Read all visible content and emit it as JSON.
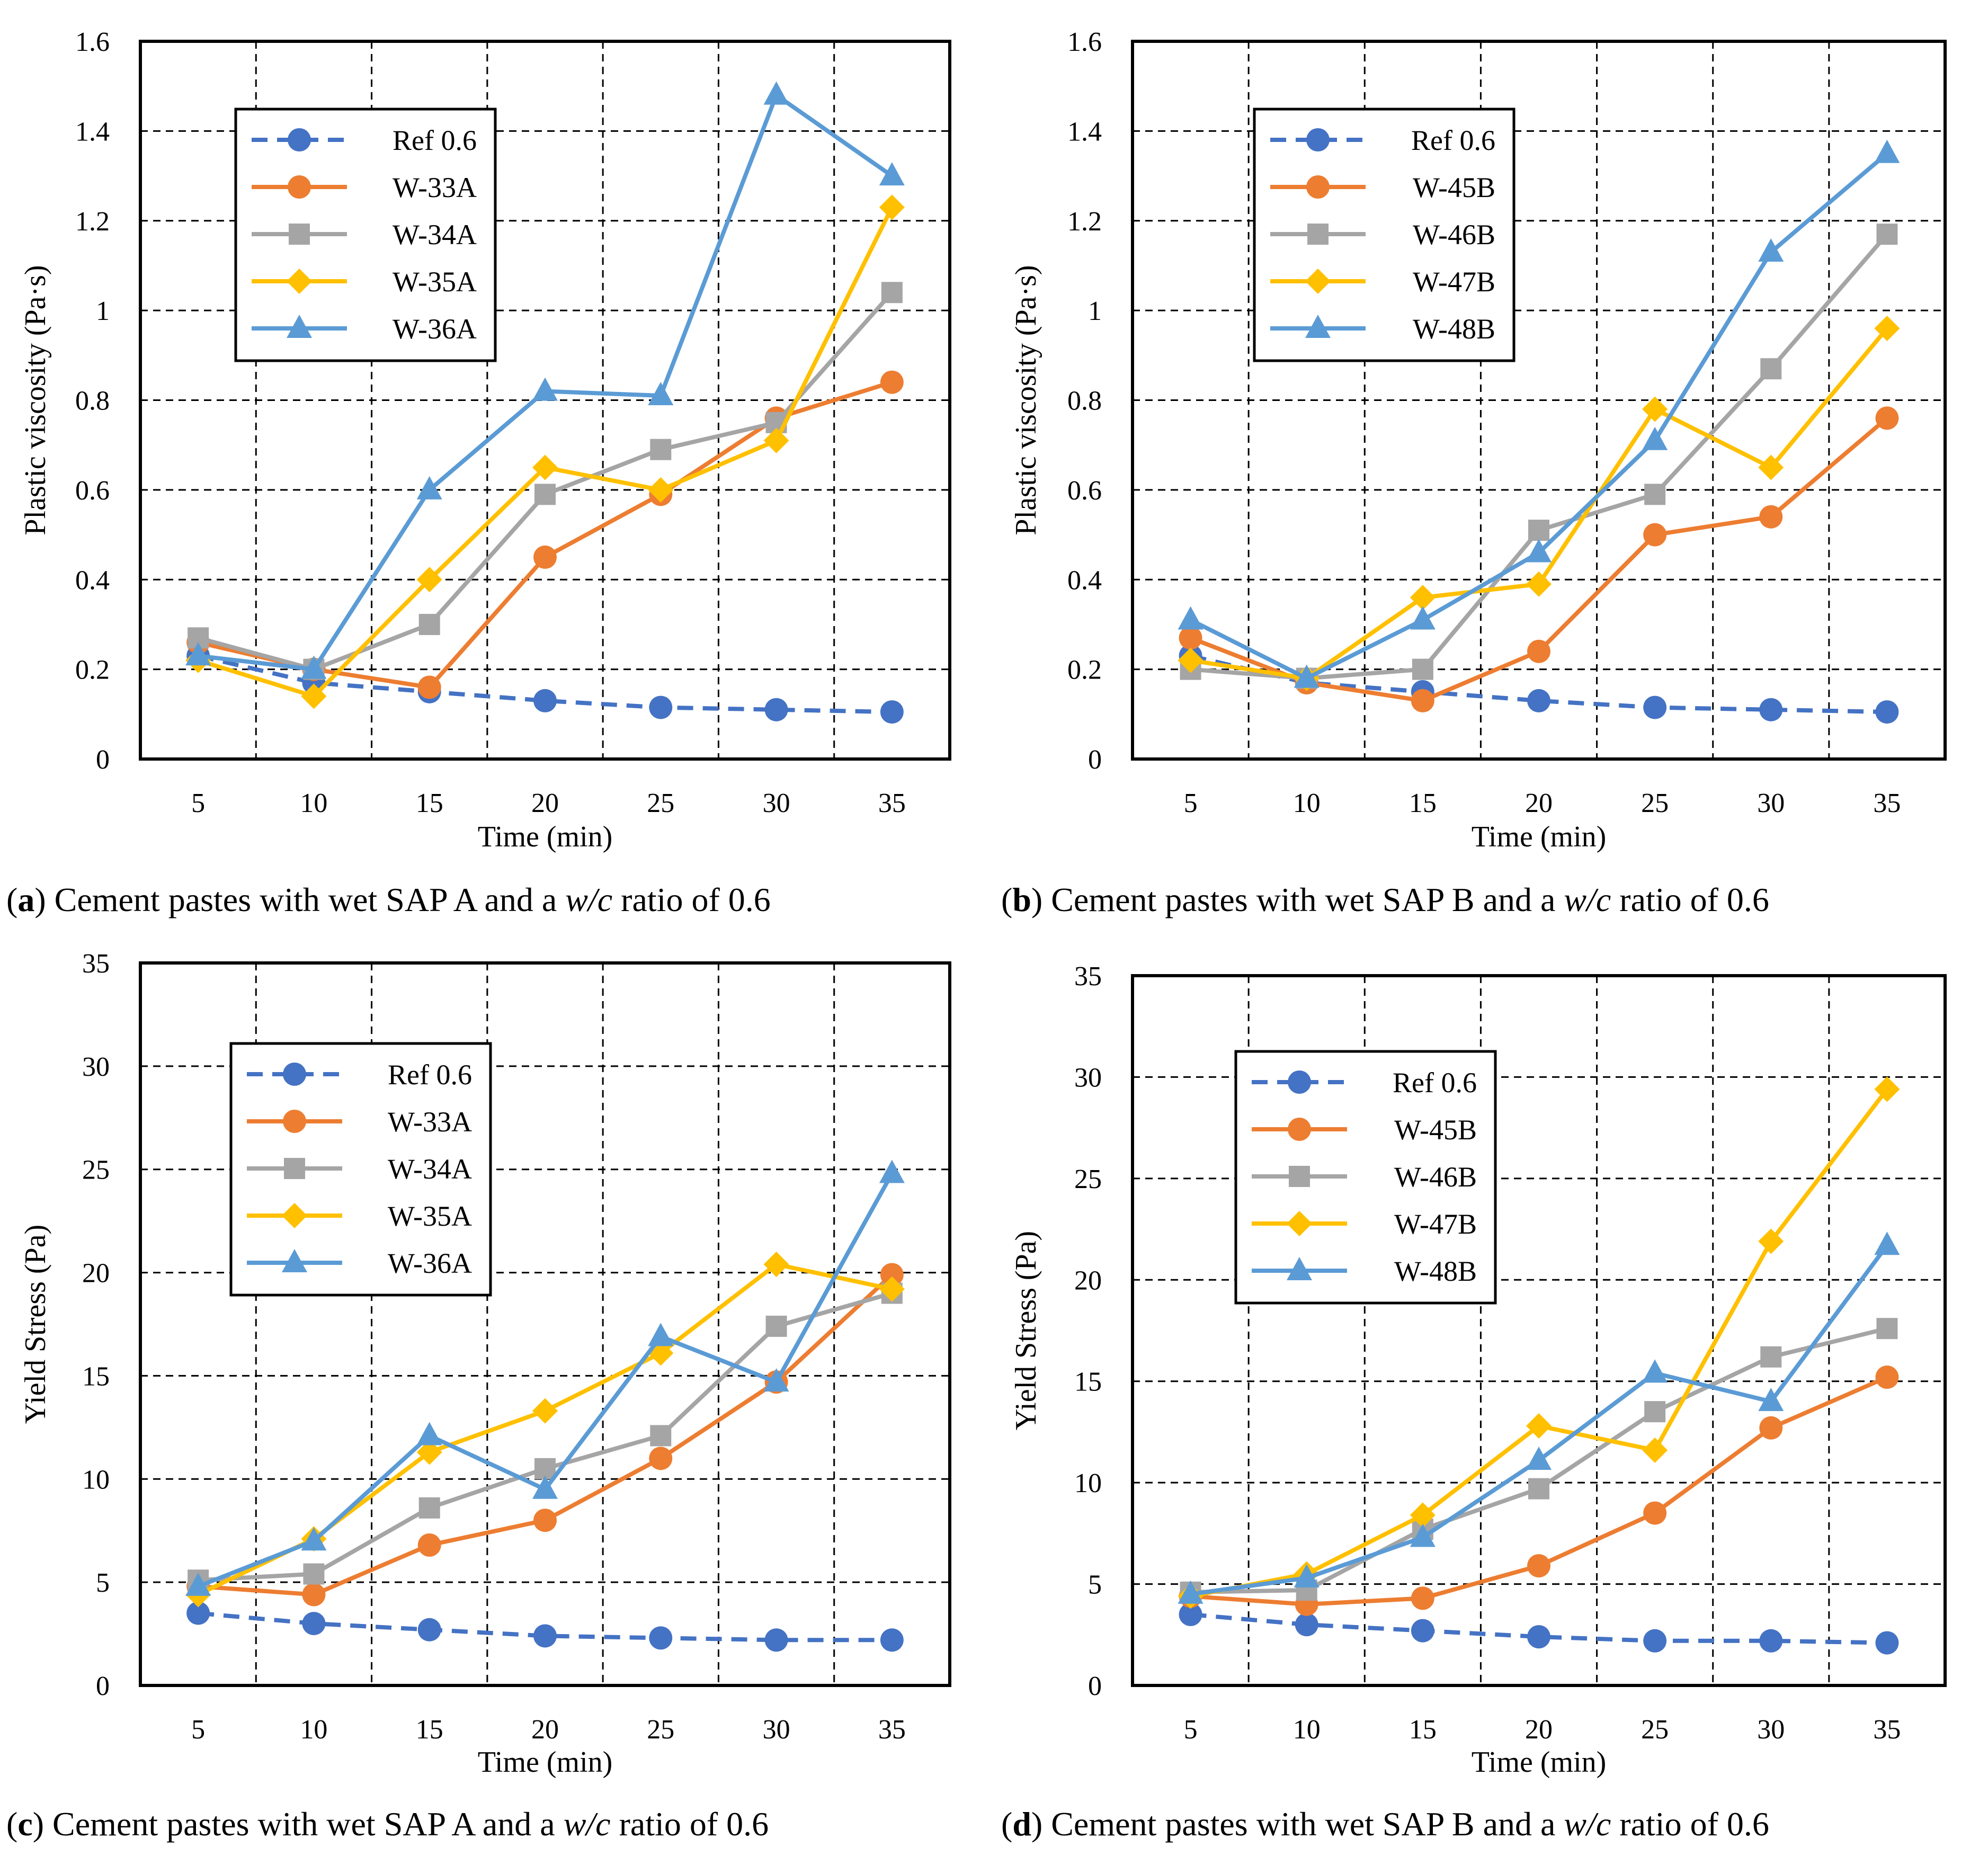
{
  "chart_data": [
    {
      "type": "line",
      "panel": "a",
      "caption_letter": "a",
      "caption_text": "Cement pastes with wet SAP A and a ",
      "caption_italic": "w/c",
      "caption_end": " ratio of 0.6",
      "xlabel": "Time (min)",
      "ylabel": "Plastic viscosity (Pa·s)",
      "categories": [
        "5",
        "10",
        "15",
        "20",
        "25",
        "30",
        "35"
      ],
      "ylim": [
        0,
        1.6
      ],
      "yticks": [
        "0",
        "0.2",
        "0.4",
        "0.6",
        "0.8",
        "1",
        "1.2",
        "1.4",
        "1.6"
      ],
      "grid": true,
      "legend": "upper-left",
      "series": [
        {
          "name": "Ref 0.6",
          "color": "#4472C4",
          "marker": "circle",
          "dash": true,
          "values": [
            0.23,
            0.17,
            0.15,
            0.13,
            0.115,
            0.11,
            0.105
          ]
        },
        {
          "name": "W-33A",
          "color": "#ED7D31",
          "marker": "circle",
          "dash": false,
          "values": [
            0.26,
            0.2,
            0.16,
            0.45,
            0.59,
            0.76,
            0.84
          ]
        },
        {
          "name": "W-34A",
          "color": "#A5A5A5",
          "marker": "square",
          "dash": false,
          "values": [
            0.27,
            0.2,
            0.3,
            0.59,
            0.69,
            0.75,
            1.04
          ]
        },
        {
          "name": "W-35A",
          "color": "#FFC000",
          "marker": "diamond",
          "dash": false,
          "values": [
            0.22,
            0.14,
            0.4,
            0.65,
            0.6,
            0.71,
            1.23
          ]
        },
        {
          "name": "W-36A",
          "color": "#5B9BD5",
          "marker": "triangle",
          "dash": false,
          "values": [
            0.23,
            0.2,
            0.6,
            0.82,
            0.81,
            1.48,
            1.3
          ]
        }
      ]
    },
    {
      "type": "line",
      "panel": "b",
      "caption_letter": "b",
      "caption_text": "Cement pastes with wet SAP B and a ",
      "caption_italic": "w/c",
      "caption_end": " ratio of 0.6",
      "xlabel": "Time (min)",
      "ylabel": "Plastic viscosity (Pa·s)",
      "categories": [
        "5",
        "10",
        "15",
        "20",
        "25",
        "30",
        "35"
      ],
      "ylim": [
        0,
        1.6
      ],
      "yticks": [
        "0",
        "0.2",
        "0.4",
        "0.6",
        "0.8",
        "1",
        "1.2",
        "1.4",
        "1.6"
      ],
      "grid": true,
      "legend": "upper-left",
      "series": [
        {
          "name": "Ref 0.6",
          "color": "#4472C4",
          "marker": "circle",
          "dash": true,
          "values": [
            0.23,
            0.17,
            0.15,
            0.13,
            0.115,
            0.11,
            0.105
          ]
        },
        {
          "name": "W-45B",
          "color": "#ED7D31",
          "marker": "circle",
          "dash": false,
          "values": [
            0.27,
            0.17,
            0.13,
            0.24,
            0.5,
            0.54,
            0.76
          ]
        },
        {
          "name": "W-46B",
          "color": "#A5A5A5",
          "marker": "square",
          "dash": false,
          "values": [
            0.2,
            0.18,
            0.2,
            0.51,
            0.59,
            0.87,
            1.17
          ]
        },
        {
          "name": "W-47B",
          "color": "#FFC000",
          "marker": "diamond",
          "dash": false,
          "values": [
            0.22,
            0.18,
            0.36,
            0.39,
            0.78,
            0.65,
            0.96
          ]
        },
        {
          "name": "W-48B",
          "color": "#5B9BD5",
          "marker": "triangle",
          "dash": false,
          "values": [
            0.31,
            0.18,
            0.31,
            0.46,
            0.71,
            1.13,
            1.35
          ]
        }
      ]
    },
    {
      "type": "line",
      "panel": "c",
      "caption_letter": "c",
      "caption_text": "Cement pastes with wet SAP A and a ",
      "caption_italic": "w/c",
      "caption_end": " ratio of 0.6",
      "xlabel": "Time (min)",
      "ylabel": "Yield Stress (Pa)",
      "categories": [
        "5",
        "10",
        "15",
        "20",
        "25",
        "30",
        "35"
      ],
      "ylim": [
        0,
        35
      ],
      "yticks": [
        "0",
        "5",
        "10",
        "15",
        "20",
        "25",
        "30",
        "35"
      ],
      "grid": true,
      "legend": "upper-left",
      "series": [
        {
          "name": "Ref 0.6",
          "color": "#4472C4",
          "marker": "circle",
          "dash": true,
          "values": [
            3.5,
            3.0,
            2.7,
            2.4,
            2.3,
            2.2,
            2.2
          ]
        },
        {
          "name": "W-33A",
          "color": "#ED7D31",
          "marker": "circle",
          "dash": false,
          "values": [
            4.8,
            4.4,
            6.8,
            8.0,
            11.0,
            14.7,
            19.9
          ]
        },
        {
          "name": "W-34A",
          "color": "#A5A5A5",
          "marker": "square",
          "dash": false,
          "values": [
            5.1,
            5.4,
            8.6,
            10.5,
            12.1,
            17.4,
            19.0
          ]
        },
        {
          "name": "W-35A",
          "color": "#FFC000",
          "marker": "diamond",
          "dash": false,
          "values": [
            4.4,
            7.1,
            11.3,
            13.3,
            16.1,
            20.4,
            19.2
          ]
        },
        {
          "name": "W-36A",
          "color": "#5B9BD5",
          "marker": "triangle",
          "dash": false,
          "values": [
            4.8,
            7.0,
            12.1,
            9.5,
            16.9,
            14.7,
            24.8
          ]
        }
      ]
    },
    {
      "type": "line",
      "panel": "d",
      "caption_letter": "d",
      "caption_text": "Cement pastes with wet SAP B and a ",
      "caption_italic": "w/c",
      "caption_end": " ratio of 0.6",
      "xlabel": "Time (min)",
      "ylabel": "Yield Stress (Pa)",
      "categories": [
        "5",
        "10",
        "15",
        "20",
        "25",
        "30",
        "35"
      ],
      "ylim": [
        0,
        35
      ],
      "yticks": [
        "0",
        "5",
        "10",
        "15",
        "20",
        "25",
        "30",
        "35"
      ],
      "grid": true,
      "legend": "upper-left",
      "series": [
        {
          "name": "Ref 0.6",
          "color": "#4472C4",
          "marker": "circle",
          "dash": true,
          "values": [
            3.5,
            3.0,
            2.7,
            2.4,
            2.2,
            2.2,
            2.1
          ]
        },
        {
          "name": "W-45B",
          "color": "#ED7D31",
          "marker": "circle",
          "dash": false,
          "values": [
            4.4,
            4.0,
            4.3,
            5.9,
            8.5,
            12.7,
            15.2
          ]
        },
        {
          "name": "W-46B",
          "color": "#A5A5A5",
          "marker": "square",
          "dash": false,
          "values": [
            4.6,
            4.7,
            7.7,
            9.7,
            13.5,
            16.2,
            17.6
          ]
        },
        {
          "name": "W-47B",
          "color": "#FFC000",
          "marker": "diamond",
          "dash": false,
          "values": [
            4.4,
            5.5,
            8.4,
            12.8,
            11.6,
            21.9,
            29.4
          ]
        },
        {
          "name": "W-48B",
          "color": "#5B9BD5",
          "marker": "triangle",
          "dash": false,
          "values": [
            4.5,
            5.3,
            7.3,
            11.1,
            15.4,
            14.0,
            21.7
          ]
        }
      ]
    }
  ]
}
